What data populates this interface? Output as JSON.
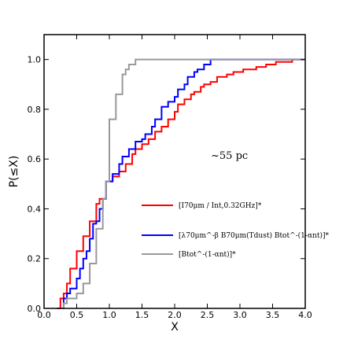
{
  "chart_data": {
    "type": "line",
    "step": true,
    "xlabel": "X",
    "ylabel": "P(≤X)",
    "xlim": [
      0.0,
      4.0
    ],
    "ylim": [
      0.0,
      1.1
    ],
    "xticks": [
      "0.0",
      "0.5",
      "1.0",
      "1.5",
      "2.0",
      "2.5",
      "3.0",
      "3.5",
      "4.0"
    ],
    "yticks": [
      "0.0",
      "0.2",
      "0.4",
      "0.6",
      "0.8",
      "1.0"
    ],
    "xtick_values": [
      0.0,
      0.5,
      1.0,
      1.5,
      2.0,
      2.5,
      3.0,
      3.5,
      4.0
    ],
    "ytick_values": [
      0.0,
      0.2,
      0.4,
      0.6,
      0.8,
      1.0
    ],
    "annotation": "~55 pc",
    "legend_placement": "lower-right",
    "series": [
      {
        "name": "[I70μm / Int,0.32GHz]*",
        "color": "#ff0000",
        "points": [
          [
            0.2,
            0.0
          ],
          [
            0.25,
            0.04
          ],
          [
            0.3,
            0.06
          ],
          [
            0.35,
            0.1
          ],
          [
            0.4,
            0.16
          ],
          [
            0.45,
            0.16
          ],
          [
            0.5,
            0.23
          ],
          [
            0.55,
            0.23
          ],
          [
            0.6,
            0.29
          ],
          [
            0.65,
            0.29
          ],
          [
            0.7,
            0.35
          ],
          [
            0.8,
            0.42
          ],
          [
            0.85,
            0.44
          ],
          [
            0.9,
            0.44
          ],
          [
            0.95,
            0.51
          ],
          [
            1.05,
            0.53
          ],
          [
            1.15,
            0.55
          ],
          [
            1.25,
            0.58
          ],
          [
            1.35,
            0.62
          ],
          [
            1.4,
            0.64
          ],
          [
            1.5,
            0.66
          ],
          [
            1.6,
            0.68
          ],
          [
            1.7,
            0.71
          ],
          [
            1.8,
            0.73
          ],
          [
            1.9,
            0.76
          ],
          [
            2.0,
            0.79
          ],
          [
            2.05,
            0.82
          ],
          [
            2.15,
            0.84
          ],
          [
            2.25,
            0.86
          ],
          [
            2.3,
            0.87
          ],
          [
            2.4,
            0.89
          ],
          [
            2.45,
            0.9
          ],
          [
            2.55,
            0.91
          ],
          [
            2.65,
            0.93
          ],
          [
            2.8,
            0.94
          ],
          [
            2.9,
            0.95
          ],
          [
            3.05,
            0.96
          ],
          [
            3.25,
            0.97
          ],
          [
            3.4,
            0.98
          ],
          [
            3.55,
            0.99
          ],
          [
            3.8,
            1.0
          ],
          [
            4.0,
            1.0
          ]
        ]
      },
      {
        "name": "[λ70μm^-β B70μm(Tdust) Btot^-(1-αnt)]*",
        "color": "#0000ff",
        "points": [
          [
            0.25,
            0.0
          ],
          [
            0.3,
            0.04
          ],
          [
            0.35,
            0.06
          ],
          [
            0.4,
            0.08
          ],
          [
            0.5,
            0.12
          ],
          [
            0.55,
            0.16
          ],
          [
            0.6,
            0.2
          ],
          [
            0.65,
            0.23
          ],
          [
            0.7,
            0.28
          ],
          [
            0.75,
            0.34
          ],
          [
            0.8,
            0.35
          ],
          [
            0.85,
            0.4
          ],
          [
            0.9,
            0.44
          ],
          [
            0.95,
            0.51
          ],
          [
            1.05,
            0.54
          ],
          [
            1.15,
            0.58
          ],
          [
            1.2,
            0.61
          ],
          [
            1.3,
            0.64
          ],
          [
            1.4,
            0.67
          ],
          [
            1.5,
            0.68
          ],
          [
            1.55,
            0.7
          ],
          [
            1.65,
            0.73
          ],
          [
            1.7,
            0.76
          ],
          [
            1.8,
            0.81
          ],
          [
            1.9,
            0.83
          ],
          [
            2.0,
            0.85
          ],
          [
            2.05,
            0.88
          ],
          [
            2.15,
            0.9
          ],
          [
            2.2,
            0.93
          ],
          [
            2.3,
            0.95
          ],
          [
            2.35,
            0.96
          ],
          [
            2.45,
            0.98
          ],
          [
            2.55,
            1.0
          ],
          [
            4.0,
            1.0
          ]
        ]
      },
      {
        "name": "[Btot^-(1-αnt)]*",
        "color": "#999999",
        "points": [
          [
            0.25,
            0.0
          ],
          [
            0.3,
            0.02
          ],
          [
            0.35,
            0.04
          ],
          [
            0.5,
            0.06
          ],
          [
            0.6,
            0.1
          ],
          [
            0.7,
            0.18
          ],
          [
            0.8,
            0.32
          ],
          [
            0.9,
            0.44
          ],
          [
            0.95,
            0.51
          ],
          [
            1.0,
            0.76
          ],
          [
            1.1,
            0.86
          ],
          [
            1.2,
            0.94
          ],
          [
            1.25,
            0.96
          ],
          [
            1.3,
            0.98
          ],
          [
            1.4,
            1.0
          ],
          [
            4.0,
            1.0
          ]
        ]
      }
    ]
  }
}
